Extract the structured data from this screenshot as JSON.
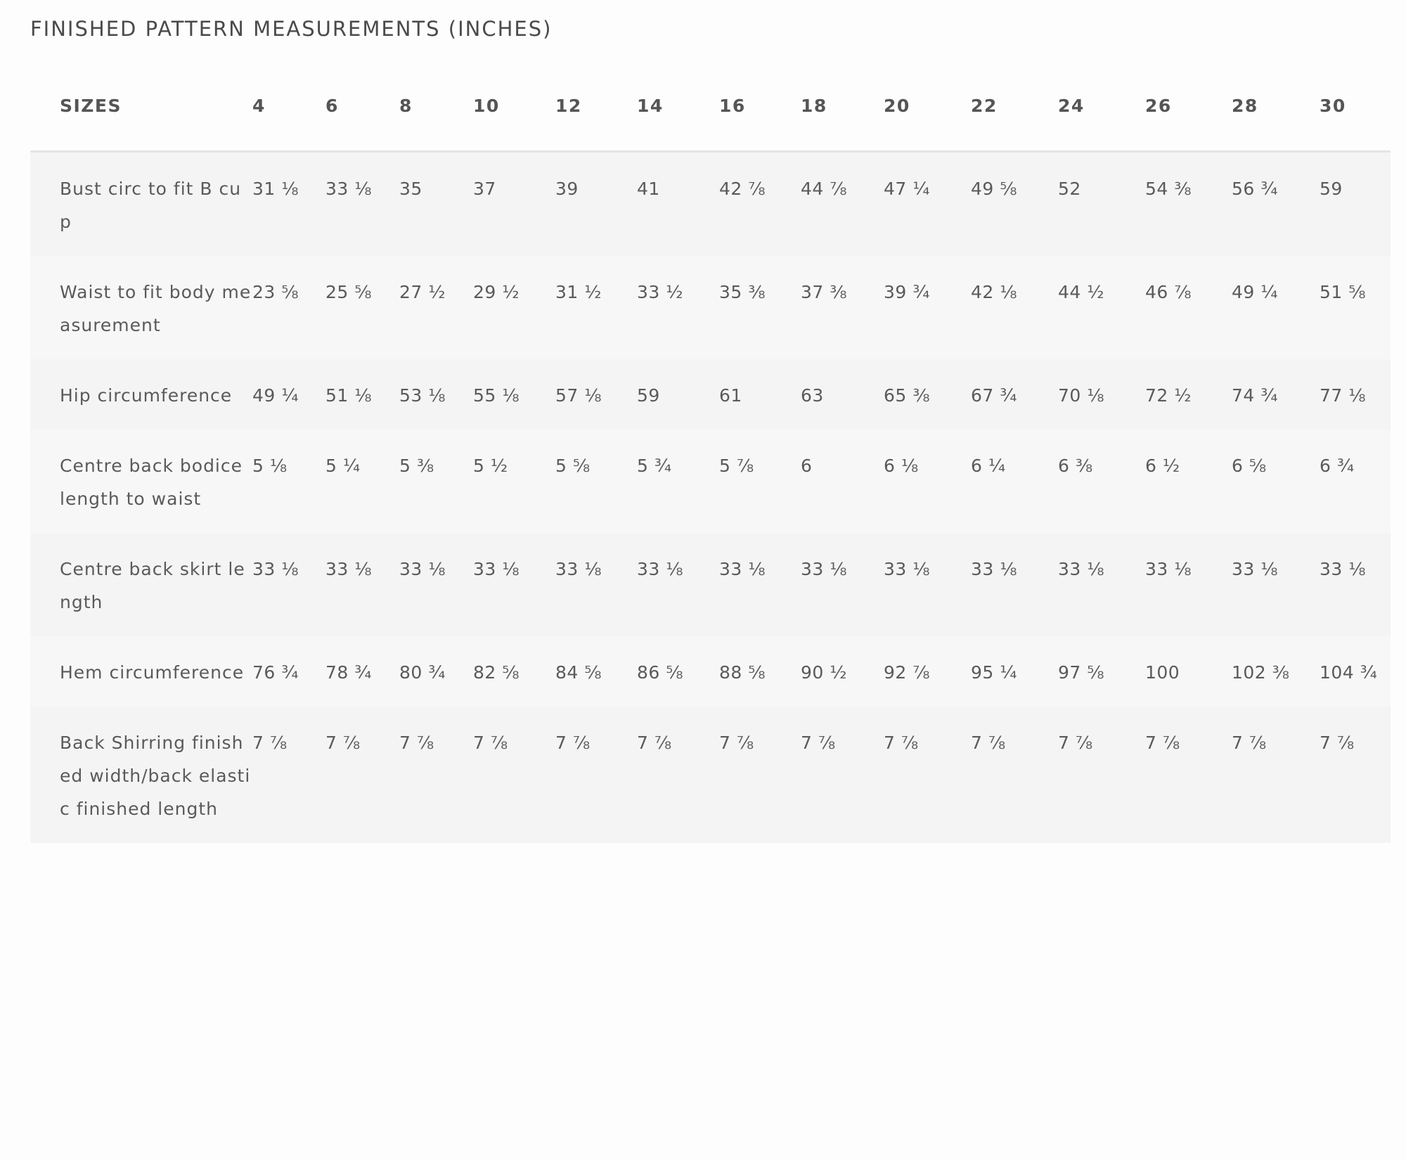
{
  "title": "FINISHED PATTERN MEASUREMENTS (INCHES)",
  "table": {
    "headers": [
      "SIZES",
      "4",
      "6",
      "8",
      "10",
      "12",
      "14",
      "16",
      "18",
      "20",
      "22",
      "24",
      "26",
      "28",
      "30"
    ],
    "rows": [
      {
        "label": "Bust circ to fit B cup",
        "values": [
          "31 ⅛",
          "33 ⅛",
          "35",
          "37",
          "39",
          "41",
          "42 ⅞",
          "44 ⅞",
          "47 ¼",
          "49 ⅝",
          "52",
          "54 ⅜",
          "56 ¾",
          "59"
        ]
      },
      {
        "label": "Waist to fit body measurement",
        "values": [
          "23 ⅝",
          "25 ⅝",
          "27 ½",
          "29 ½",
          "31 ½",
          "33 ½",
          "35 ⅜",
          "37 ⅜",
          "39 ¾",
          "42 ⅛",
          "44 ½",
          "46 ⅞",
          "49 ¼",
          "51 ⅝"
        ]
      },
      {
        "label": "Hip circumference",
        "values": [
          "49 ¼",
          "51 ⅛",
          "53 ⅛",
          "55 ⅛",
          "57 ⅛",
          "59",
          "61",
          "63",
          "65 ⅜",
          "67 ¾",
          "70 ⅛",
          "72 ½",
          "74 ¾",
          "77 ⅛"
        ]
      },
      {
        "label": "Centre back bodice length to waist",
        "values": [
          "5 ⅛",
          "5 ¼",
          "5 ⅜",
          "5 ½",
          "5 ⅝",
          "5 ¾",
          "5 ⅞",
          "6",
          "6 ⅛",
          "6 ¼",
          "6 ⅜",
          "6 ½",
          "6 ⅝",
          "6 ¾"
        ]
      },
      {
        "label": "Centre back skirt length",
        "values": [
          "33 ⅛",
          "33 ⅛",
          "33 ⅛",
          "33 ⅛",
          "33 ⅛",
          "33 ⅛",
          "33 ⅛",
          "33 ⅛",
          "33 ⅛",
          "33 ⅛",
          "33 ⅛",
          "33 ⅛",
          "33 ⅛",
          "33 ⅛"
        ]
      },
      {
        "label": "Hem circumference",
        "values": [
          "76 ¾",
          "78 ¾",
          "80 ¾",
          "82 ⅝",
          "84 ⅝",
          "86 ⅝",
          "88 ⅝",
          "90 ½",
          "92 ⅞",
          "95 ¼",
          "97 ⅝",
          "100",
          "102 ⅜",
          "104 ¾"
        ]
      },
      {
        "label": "Back Shirring finished width/back elastic finished length",
        "values": [
          "7 ⅞",
          "7 ⅞",
          "7 ⅞",
          "7 ⅞",
          "7 ⅞",
          "7 ⅞",
          "7 ⅞",
          "7 ⅞",
          "7 ⅞",
          "7 ⅞",
          "7 ⅞",
          "7 ⅞",
          "7 ⅞",
          "7 ⅞"
        ]
      }
    ]
  }
}
